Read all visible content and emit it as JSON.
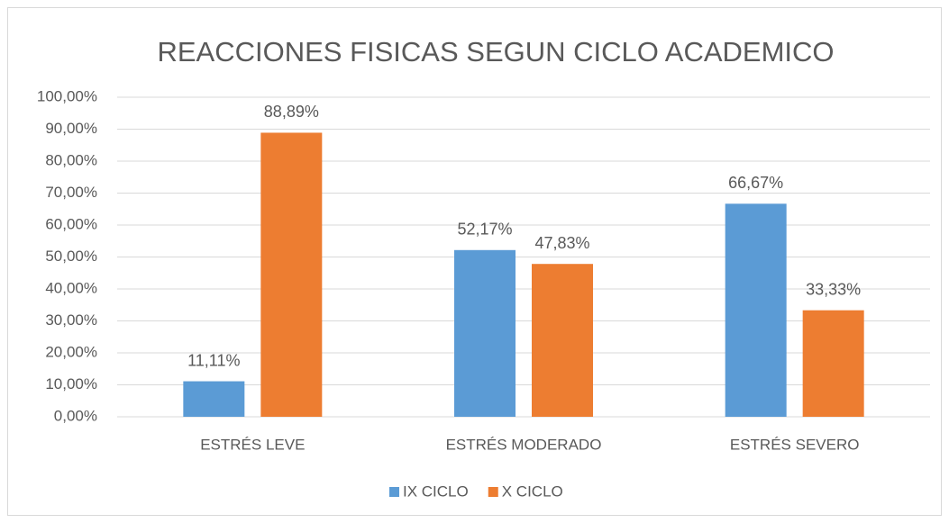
{
  "chart_data": {
    "type": "bar",
    "title": "REACCIONES FISICAS SEGUN CICLO ACADEMICO",
    "categories": [
      "ESTRÉS LEVE",
      "ESTRÉS MODERADO",
      "ESTRÉS SEVERO"
    ],
    "series": [
      {
        "name": "IX CICLO",
        "color": "#5b9bd5",
        "values": [
          11.11,
          52.17,
          66.67
        ],
        "value_labels": [
          "11,11%",
          "52,17%",
          "66,67%"
        ]
      },
      {
        "name": "X CICLO",
        "color": "#ed7d31",
        "values": [
          88.89,
          47.83,
          33.33
        ],
        "value_labels": [
          "88,89%",
          "47,83%",
          "33,33%"
        ]
      }
    ],
    "ylim": [
      0,
      100
    ],
    "yticks": [
      {
        "value": 0,
        "label": "0,00%"
      },
      {
        "value": 10,
        "label": "10,00%"
      },
      {
        "value": 20,
        "label": "20,00%"
      },
      {
        "value": 30,
        "label": "30,00%"
      },
      {
        "value": 40,
        "label": "40,00%"
      },
      {
        "value": 50,
        "label": "50,00%"
      },
      {
        "value": 60,
        "label": "60,00%"
      },
      {
        "value": 70,
        "label": "70,00%"
      },
      {
        "value": 80,
        "label": "80,00%"
      },
      {
        "value": 90,
        "label": "90,00%"
      },
      {
        "value": 100,
        "label": "100,00%"
      }
    ],
    "grid": true,
    "legend": "bottom"
  }
}
